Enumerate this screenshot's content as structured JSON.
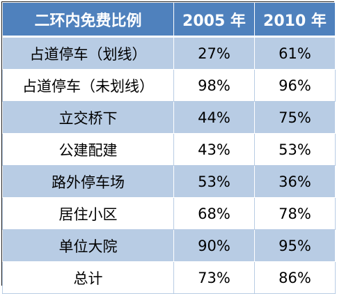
{
  "chart_data": {
    "type": "table",
    "columns": [
      "二环内免费比例",
      "2005 年",
      "2010 年"
    ],
    "rows": [
      {
        "label": "占道停车（划线）",
        "v2005": "27%",
        "v2010": "61%"
      },
      {
        "label": "占道停车（未划线）",
        "v2005": "98%",
        "v2010": "96%"
      },
      {
        "label": "立交桥下",
        "v2005": "44%",
        "v2010": "75%"
      },
      {
        "label": "公建配建",
        "v2005": "43%",
        "v2010": "53%"
      },
      {
        "label": "路外停车场",
        "v2005": "53%",
        "v2010": "36%"
      },
      {
        "label": "居住小区",
        "v2005": "68%",
        "v2010": "78%"
      },
      {
        "label": "单位大院",
        "v2005": "90%",
        "v2010": "95%"
      },
      {
        "label": "总计",
        "v2005": "73%",
        "v2010": "86%"
      }
    ]
  },
  "colors": {
    "header_bg": "#4f81bd",
    "band_bg": "#b8cce4",
    "plain_bg": "#ffffff"
  }
}
